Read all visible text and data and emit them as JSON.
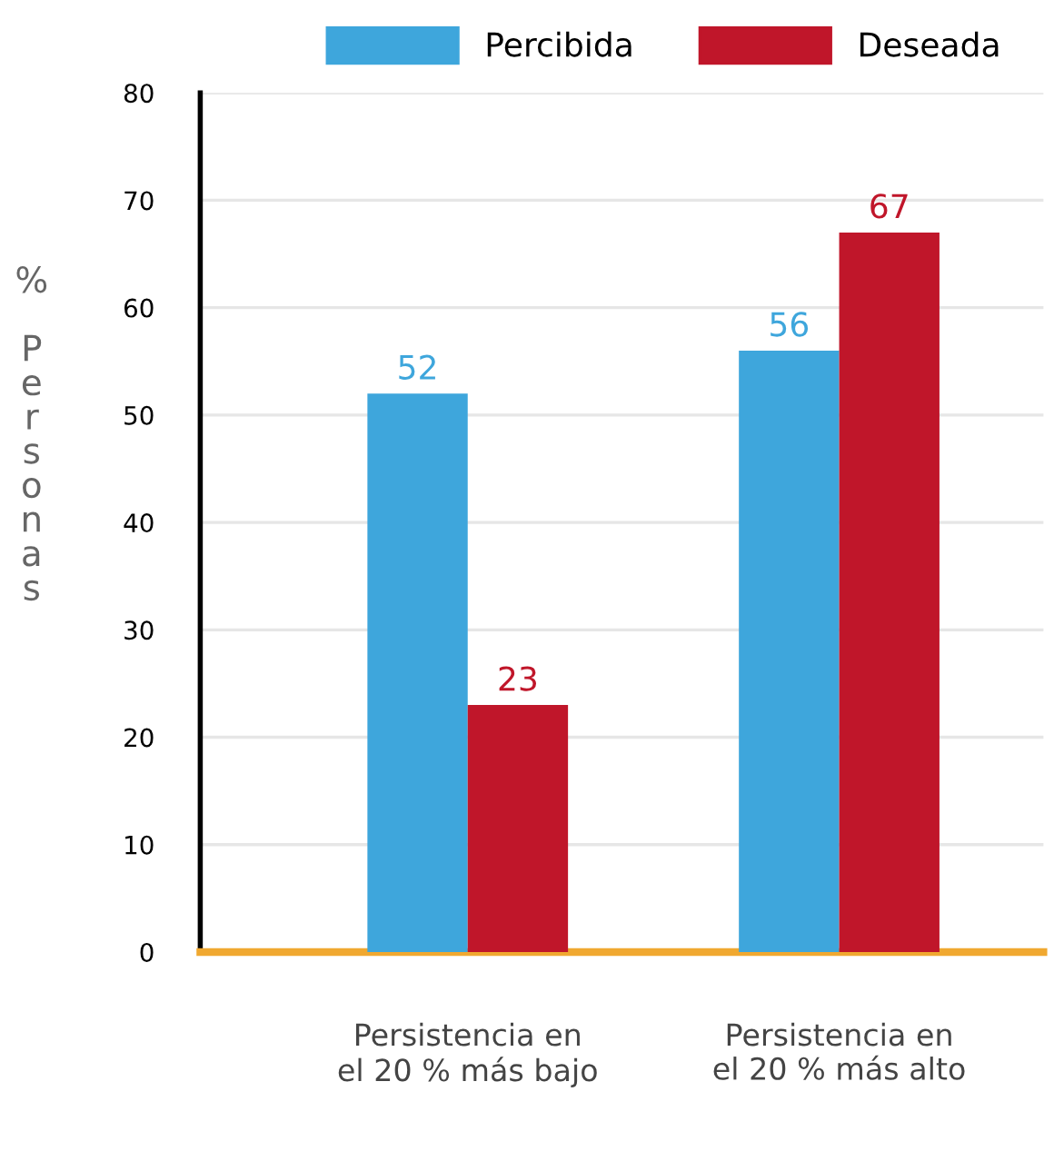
{
  "chart_data": {
    "type": "bar",
    "ylabel": "% Personas",
    "categories": [
      "Persistencia en\nel 20 % más bajo",
      "Persistencia en\nel 20 % más alto"
    ],
    "series": [
      {
        "name": "Percibida",
        "color": "#3ea6dc",
        "values": [
          52,
          56
        ]
      },
      {
        "name": "Deseada",
        "color": "#c0162a",
        "values": [
          23,
          67
        ]
      }
    ],
    "ylim": [
      0,
      80
    ],
    "yticks": [
      0,
      10,
      20,
      30,
      40,
      50,
      60,
      70,
      80
    ],
    "grid": "y",
    "legend": "top",
    "data_labels": true
  }
}
